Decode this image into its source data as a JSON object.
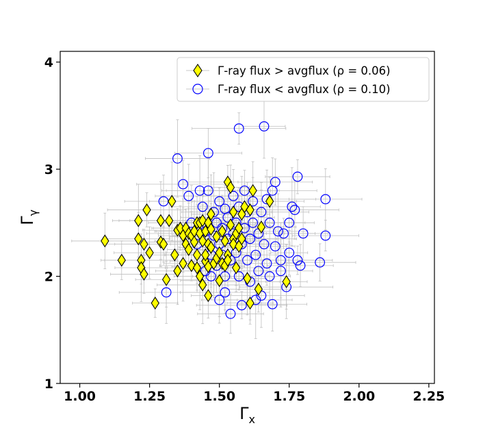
{
  "chart_data": {
    "type": "scatter",
    "xlabel": "Γ",
    "xlabel_sub": "x",
    "ylabel": "Γ",
    "ylabel_sub": "γ",
    "xlim": [
      0.93,
      2.27
    ],
    "ylim": [
      1.0,
      4.1
    ],
    "xticks": [
      "1.00",
      "1.25",
      "1.50",
      "1.75",
      "2.00",
      "2.25"
    ],
    "yticks": [
      "1",
      "2",
      "3",
      "4"
    ],
    "legend": {
      "placement": "top-right"
    },
    "series": [
      {
        "name": "Γ-ray flux > avgflux (ρ = 0.06)",
        "marker": "diamond",
        "color": "#ffff00",
        "edgecolor": "#000000",
        "points": [
          [
            1.09,
            2.33
          ],
          [
            1.15,
            2.15
          ],
          [
            1.21,
            2.35
          ],
          [
            1.21,
            2.52
          ],
          [
            1.22,
            2.15
          ],
          [
            1.22,
            2.08
          ],
          [
            1.23,
            2.3
          ],
          [
            1.23,
            2.02
          ],
          [
            1.24,
            2.62
          ],
          [
            1.25,
            2.22
          ],
          [
            1.27,
            1.75
          ],
          [
            1.29,
            2.52
          ],
          [
            1.29,
            2.32
          ],
          [
            1.3,
            2.3
          ],
          [
            1.31,
            1.97
          ],
          [
            1.32,
            2.52
          ],
          [
            1.33,
            2.7
          ],
          [
            1.34,
            2.2
          ],
          [
            1.35,
            2.43
          ],
          [
            1.35,
            2.05
          ],
          [
            1.36,
            2.45
          ],
          [
            1.37,
            2.12
          ],
          [
            1.37,
            2.38
          ],
          [
            1.38,
            2.45
          ],
          [
            1.38,
            2.3
          ],
          [
            1.39,
            2.4
          ],
          [
            1.39,
            2.25
          ],
          [
            1.4,
            2.1
          ],
          [
            1.4,
            2.38
          ],
          [
            1.41,
            2.42
          ],
          [
            1.41,
            2.32
          ],
          [
            1.42,
            2.5
          ],
          [
            1.42,
            2.2
          ],
          [
            1.42,
            2.08
          ],
          [
            1.43,
            2.5
          ],
          [
            1.43,
            2.4
          ],
          [
            1.43,
            2.0
          ],
          [
            1.44,
            1.92
          ],
          [
            1.44,
            2.33
          ],
          [
            1.44,
            2.52
          ],
          [
            1.45,
            2.14
          ],
          [
            1.45,
            2.42
          ],
          [
            1.45,
            2.2
          ],
          [
            1.46,
            2.5
          ],
          [
            1.46,
            2.3
          ],
          [
            1.46,
            1.82
          ],
          [
            1.46,
            2.09
          ],
          [
            1.47,
            2.58
          ],
          [
            1.47,
            2.27
          ],
          [
            1.47,
            2.44
          ],
          [
            1.48,
            2.12
          ],
          [
            1.49,
            2.37
          ],
          [
            1.49,
            2.17
          ],
          [
            1.5,
            2.22
          ],
          [
            1.5,
            1.96
          ],
          [
            1.51,
            2.42
          ],
          [
            1.51,
            2.12
          ],
          [
            1.52,
            2.1
          ],
          [
            1.52,
            2.33
          ],
          [
            1.53,
            2.88
          ],
          [
            1.53,
            2.2
          ],
          [
            1.53,
            2.15
          ],
          [
            1.54,
            2.83
          ],
          [
            1.54,
            2.48
          ],
          [
            1.55,
            2.35
          ],
          [
            1.55,
            2.6
          ],
          [
            1.55,
            2.3
          ],
          [
            1.56,
            2.4
          ],
          [
            1.56,
            2.08
          ],
          [
            1.57,
            2.28
          ],
          [
            1.57,
            2.45
          ],
          [
            1.58,
            2.58
          ],
          [
            1.58,
            2.35
          ],
          [
            1.59,
            2.65
          ],
          [
            1.6,
            1.98
          ],
          [
            1.61,
            2.62
          ],
          [
            1.61,
            1.75
          ],
          [
            1.62,
            2.8
          ],
          [
            1.64,
            1.88
          ],
          [
            1.65,
            2.46
          ],
          [
            1.68,
            2.7
          ],
          [
            1.74,
            1.95
          ]
        ]
      },
      {
        "name": "Γ-ray flux < avgflux (ρ = 0.10)",
        "marker": "circle",
        "color": "none",
        "edgecolor": "#0000ff",
        "points": [
          [
            1.3,
            2.7
          ],
          [
            1.31,
            1.85
          ],
          [
            1.35,
            3.1
          ],
          [
            1.37,
            2.86
          ],
          [
            1.39,
            2.75
          ],
          [
            1.4,
            2.5
          ],
          [
            1.42,
            2.3
          ],
          [
            1.43,
            2.8
          ],
          [
            1.44,
            2.65
          ],
          [
            1.45,
            2.42
          ],
          [
            1.45,
            2.05
          ],
          [
            1.46,
            2.8
          ],
          [
            1.46,
            3.15
          ],
          [
            1.47,
            2.2
          ],
          [
            1.47,
            2.0
          ],
          [
            1.48,
            2.6
          ],
          [
            1.48,
            2.38
          ],
          [
            1.49,
            2.5
          ],
          [
            1.49,
            2.1
          ],
          [
            1.5,
            2.7
          ],
          [
            1.5,
            2.3
          ],
          [
            1.5,
            1.78
          ],
          [
            1.51,
            2.45
          ],
          [
            1.51,
            2.2
          ],
          [
            1.52,
            2.0
          ],
          [
            1.52,
            2.63
          ],
          [
            1.52,
            1.85
          ],
          [
            1.53,
            2.35
          ],
          [
            1.53,
            2.55
          ],
          [
            1.54,
            2.15
          ],
          [
            1.54,
            1.65
          ],
          [
            1.55,
            2.75
          ],
          [
            1.55,
            2.4
          ],
          [
            1.56,
            2.22
          ],
          [
            1.56,
            2.5
          ],
          [
            1.57,
            3.38
          ],
          [
            1.57,
            2.65
          ],
          [
            1.57,
            2.0
          ],
          [
            1.58,
            2.3
          ],
          [
            1.58,
            1.73
          ],
          [
            1.59,
            2.8
          ],
          [
            1.59,
            2.45
          ],
          [
            1.6,
            2.15
          ],
          [
            1.6,
            2.6
          ],
          [
            1.61,
            2.35
          ],
          [
            1.61,
            1.95
          ],
          [
            1.62,
            2.7
          ],
          [
            1.62,
            2.5
          ],
          [
            1.63,
            2.2
          ],
          [
            1.63,
            1.78
          ],
          [
            1.64,
            2.4
          ],
          [
            1.64,
            2.05
          ],
          [
            1.65,
            2.6
          ],
          [
            1.65,
            1.82
          ],
          [
            1.66,
            2.3
          ],
          [
            1.66,
            3.4
          ],
          [
            1.67,
            2.72
          ],
          [
            1.67,
            2.12
          ],
          [
            1.68,
            2.5
          ],
          [
            1.68,
            2.0
          ],
          [
            1.69,
            2.8
          ],
          [
            1.69,
            1.74
          ],
          [
            1.7,
            2.88
          ],
          [
            1.7,
            2.28
          ],
          [
            1.71,
            2.42
          ],
          [
            1.72,
            2.15
          ],
          [
            1.72,
            2.05
          ],
          [
            1.73,
            2.4
          ],
          [
            1.74,
            1.9
          ],
          [
            1.75,
            2.5
          ],
          [
            1.75,
            2.22
          ],
          [
            1.76,
            2.65
          ],
          [
            1.77,
            2.62
          ],
          [
            1.78,
            2.15
          ],
          [
            1.78,
            2.93
          ],
          [
            1.79,
            2.1
          ],
          [
            1.8,
            2.4
          ],
          [
            1.86,
            2.13
          ],
          [
            1.88,
            2.72
          ],
          [
            1.88,
            2.38
          ]
        ]
      }
    ]
  }
}
